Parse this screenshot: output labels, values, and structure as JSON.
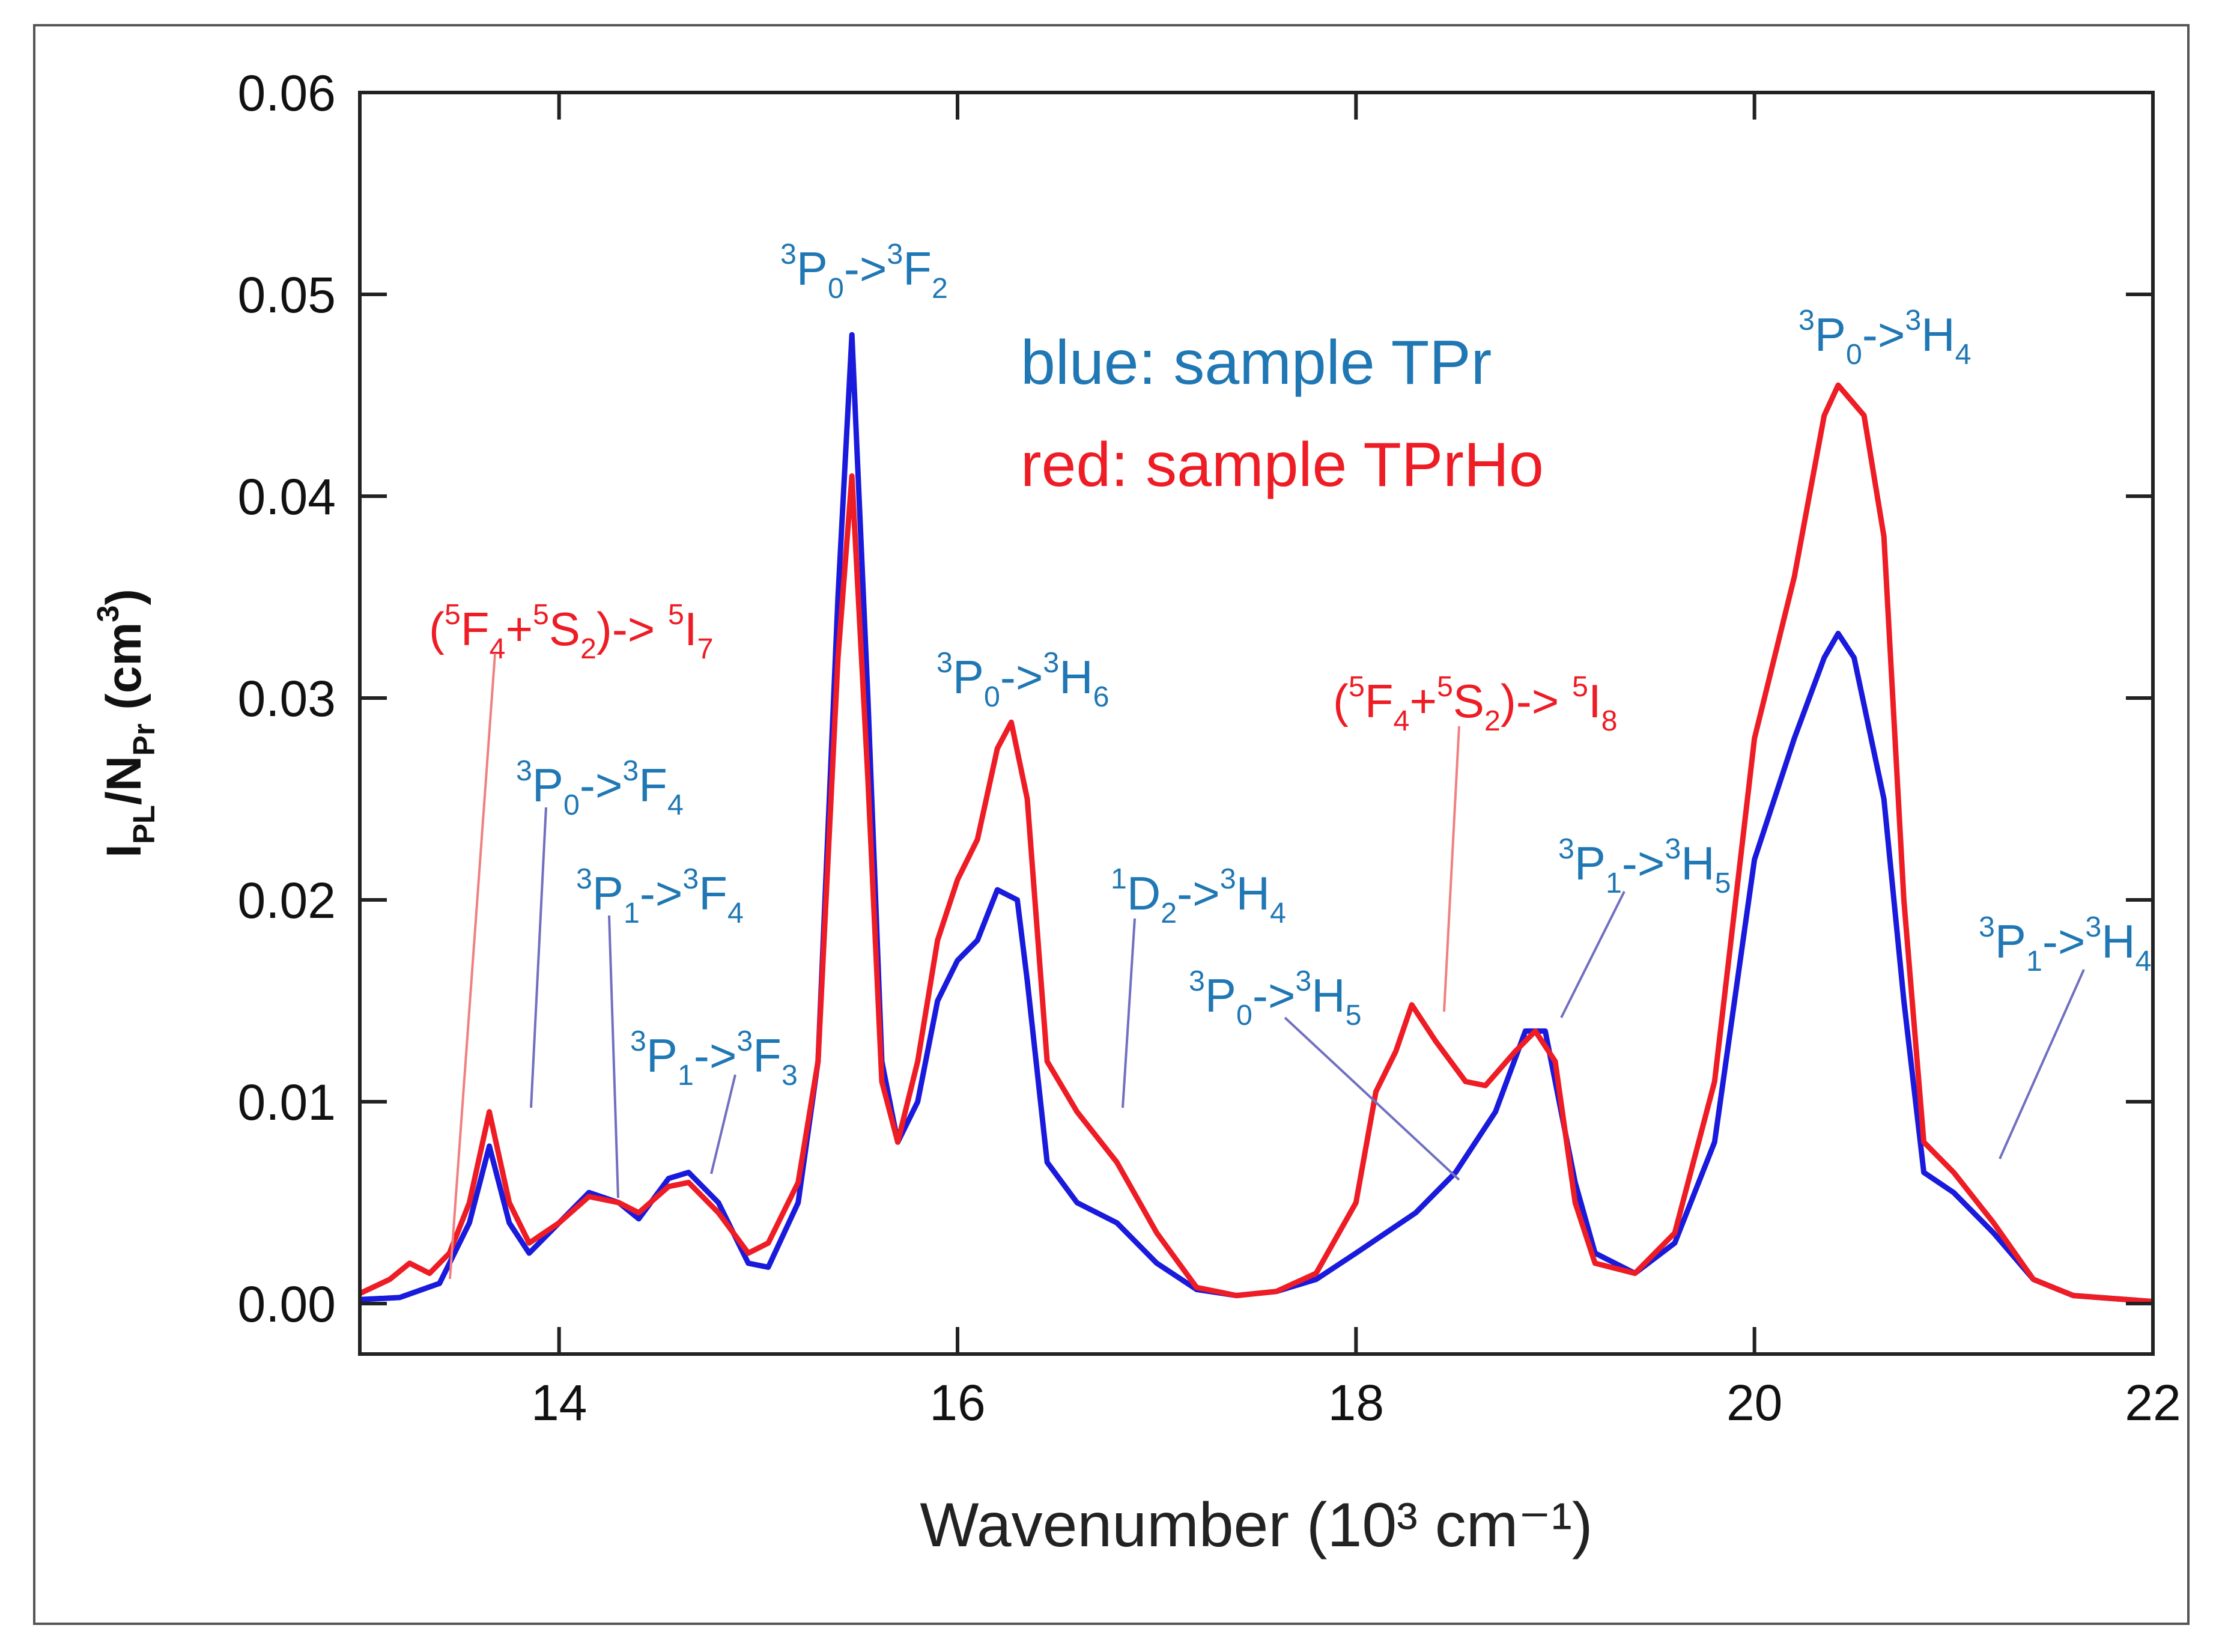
{
  "chart_data": {
    "type": "line",
    "title": "",
    "xlabel": "Wavenumber (10³ cm⁻¹)",
    "ylabel": {
      "main": "I",
      "sub1": "PL",
      "mid": "/N",
      "sub2": "Pr",
      "unit": " (cm",
      "unit_sup": "3",
      "unit_end": ")"
    },
    "xlim": [
      13,
      22
    ],
    "ylim": [
      -0.0025,
      0.06
    ],
    "xticks": [
      14,
      16,
      18,
      20,
      22
    ],
    "xtick_labels": [
      "14",
      "16",
      "18",
      "20",
      "22"
    ],
    "yticks": [
      0.0,
      0.01,
      0.02,
      0.03,
      0.04,
      0.05,
      0.06
    ],
    "ytick_labels": [
      "0.00",
      "0.01",
      "0.02",
      "0.03",
      "0.04",
      "0.05",
      "0.06"
    ],
    "grid": false,
    "legend": [
      {
        "text": "blue: sample TPr",
        "color": "#1f77b4"
      },
      {
        "text": "red: sample TPrHo",
        "color": "#ee1c24"
      }
    ],
    "series": [
      {
        "name": "sample TPr",
        "color": "#1a1adc",
        "points": [
          [
            13.0,
            0.0002
          ],
          [
            13.2,
            0.0003
          ],
          [
            13.4,
            0.001
          ],
          [
            13.55,
            0.004
          ],
          [
            13.65,
            0.0078
          ],
          [
            13.75,
            0.004
          ],
          [
            13.85,
            0.0025
          ],
          [
            14.0,
            0.004
          ],
          [
            14.15,
            0.0055
          ],
          [
            14.3,
            0.005
          ],
          [
            14.4,
            0.0042
          ],
          [
            14.55,
            0.0062
          ],
          [
            14.65,
            0.0065
          ],
          [
            14.8,
            0.005
          ],
          [
            14.95,
            0.002
          ],
          [
            15.05,
            0.0018
          ],
          [
            15.2,
            0.005
          ],
          [
            15.3,
            0.012
          ],
          [
            15.4,
            0.035
          ],
          [
            15.47,
            0.048
          ],
          [
            15.55,
            0.03
          ],
          [
            15.62,
            0.012
          ],
          [
            15.7,
            0.008
          ],
          [
            15.8,
            0.01
          ],
          [
            15.9,
            0.015
          ],
          [
            16.0,
            0.017
          ],
          [
            16.1,
            0.018
          ],
          [
            16.2,
            0.0205
          ],
          [
            16.3,
            0.02
          ],
          [
            16.35,
            0.016
          ],
          [
            16.45,
            0.007
          ],
          [
            16.6,
            0.005
          ],
          [
            16.8,
            0.004
          ],
          [
            17.0,
            0.002
          ],
          [
            17.2,
            0.0007
          ],
          [
            17.4,
            0.0004
          ],
          [
            17.6,
            0.0006
          ],
          [
            17.8,
            0.0012
          ],
          [
            18.0,
            0.0025
          ],
          [
            18.3,
            0.0045
          ],
          [
            18.5,
            0.0065
          ],
          [
            18.7,
            0.0095
          ],
          [
            18.85,
            0.0135
          ],
          [
            18.95,
            0.0135
          ],
          [
            19.1,
            0.006
          ],
          [
            19.2,
            0.0025
          ],
          [
            19.4,
            0.0015
          ],
          [
            19.6,
            0.003
          ],
          [
            19.8,
            0.008
          ],
          [
            20.0,
            0.022
          ],
          [
            20.2,
            0.028
          ],
          [
            20.35,
            0.032
          ],
          [
            20.42,
            0.0332
          ],
          [
            20.5,
            0.032
          ],
          [
            20.65,
            0.025
          ],
          [
            20.75,
            0.015
          ],
          [
            20.85,
            0.0065
          ],
          [
            21.0,
            0.0055
          ],
          [
            21.2,
            0.0035
          ],
          [
            21.4,
            0.0012
          ],
          [
            21.6,
            0.0004
          ],
          [
            22.0,
            0.0001
          ]
        ]
      },
      {
        "name": "sample TPrHo",
        "color": "#ee1c24",
        "points": [
          [
            13.0,
            0.0005
          ],
          [
            13.15,
            0.0012
          ],
          [
            13.25,
            0.002
          ],
          [
            13.35,
            0.0015
          ],
          [
            13.45,
            0.0025
          ],
          [
            13.55,
            0.005
          ],
          [
            13.65,
            0.0095
          ],
          [
            13.75,
            0.005
          ],
          [
            13.85,
            0.003
          ],
          [
            14.0,
            0.004
          ],
          [
            14.15,
            0.0053
          ],
          [
            14.3,
            0.005
          ],
          [
            14.4,
            0.0045
          ],
          [
            14.55,
            0.0058
          ],
          [
            14.65,
            0.006
          ],
          [
            14.8,
            0.0045
          ],
          [
            14.95,
            0.0025
          ],
          [
            15.05,
            0.003
          ],
          [
            15.2,
            0.006
          ],
          [
            15.3,
            0.012
          ],
          [
            15.4,
            0.032
          ],
          [
            15.47,
            0.041
          ],
          [
            15.55,
            0.026
          ],
          [
            15.62,
            0.011
          ],
          [
            15.7,
            0.008
          ],
          [
            15.8,
            0.012
          ],
          [
            15.9,
            0.018
          ],
          [
            16.0,
            0.021
          ],
          [
            16.1,
            0.023
          ],
          [
            16.2,
            0.0275
          ],
          [
            16.27,
            0.0288
          ],
          [
            16.35,
            0.025
          ],
          [
            16.45,
            0.012
          ],
          [
            16.6,
            0.0095
          ],
          [
            16.8,
            0.007
          ],
          [
            17.0,
            0.0035
          ],
          [
            17.2,
            0.0008
          ],
          [
            17.4,
            0.0004
          ],
          [
            17.6,
            0.0006
          ],
          [
            17.8,
            0.0015
          ],
          [
            18.0,
            0.005
          ],
          [
            18.1,
            0.0105
          ],
          [
            18.2,
            0.0125
          ],
          [
            18.28,
            0.0148
          ],
          [
            18.4,
            0.013
          ],
          [
            18.55,
            0.011
          ],
          [
            18.65,
            0.0108
          ],
          [
            18.8,
            0.0125
          ],
          [
            18.9,
            0.0135
          ],
          [
            19.0,
            0.012
          ],
          [
            19.1,
            0.005
          ],
          [
            19.2,
            0.002
          ],
          [
            19.4,
            0.0015
          ],
          [
            19.6,
            0.0035
          ],
          [
            19.8,
            0.011
          ],
          [
            20.0,
            0.028
          ],
          [
            20.2,
            0.036
          ],
          [
            20.35,
            0.044
          ],
          [
            20.42,
            0.0455
          ],
          [
            20.55,
            0.044
          ],
          [
            20.65,
            0.038
          ],
          [
            20.75,
            0.02
          ],
          [
            20.85,
            0.008
          ],
          [
            21.0,
            0.0065
          ],
          [
            21.2,
            0.004
          ],
          [
            21.4,
            0.0012
          ],
          [
            21.6,
            0.0004
          ],
          [
            22.0,
            0.0001
          ]
        ]
      }
    ],
    "annotations": [
      {
        "id": "a-p0-f2",
        "color": "#1f77b4",
        "parts": [
          [
            "sup",
            "3"
          ],
          [
            "t",
            "P"
          ],
          [
            "sub",
            "0"
          ],
          [
            "t",
            "->"
          ],
          [
            "sup",
            "3"
          ],
          [
            "t",
            "F"
          ],
          [
            "sub",
            "2"
          ]
        ]
      },
      {
        "id": "a-p0-h4",
        "color": "#1f77b4",
        "parts": [
          [
            "sup",
            "3"
          ],
          [
            "t",
            "P"
          ],
          [
            "sub",
            "0"
          ],
          [
            "t",
            "->"
          ],
          [
            "sup",
            "3"
          ],
          [
            "t",
            "H"
          ],
          [
            "sub",
            "4"
          ]
        ]
      },
      {
        "id": "a-f4s2-i7",
        "color": "#ee1c24",
        "parts": [
          [
            "t",
            "("
          ],
          [
            "sup",
            "5"
          ],
          [
            "t",
            "F"
          ],
          [
            "sub",
            "4"
          ],
          [
            "t",
            "+"
          ],
          [
            "sup",
            "5"
          ],
          [
            "t",
            "S"
          ],
          [
            "sub",
            "2"
          ],
          [
            "t",
            ")-> "
          ],
          [
            "sup",
            "5"
          ],
          [
            "t",
            "I"
          ],
          [
            "sub",
            "7"
          ]
        ]
      },
      {
        "id": "a-p0-h6",
        "color": "#1f77b4",
        "parts": [
          [
            "sup",
            "3"
          ],
          [
            "t",
            "P"
          ],
          [
            "sub",
            "0"
          ],
          [
            "t",
            "->"
          ],
          [
            "sup",
            "3"
          ],
          [
            "t",
            "H"
          ],
          [
            "sub",
            "6"
          ]
        ]
      },
      {
        "id": "a-f4s2-i8",
        "color": "#ee1c24",
        "parts": [
          [
            "t",
            "("
          ],
          [
            "sup",
            "5"
          ],
          [
            "t",
            "F"
          ],
          [
            "sub",
            "4"
          ],
          [
            "t",
            "+"
          ],
          [
            "sup",
            "5"
          ],
          [
            "t",
            "S"
          ],
          [
            "sub",
            "2"
          ],
          [
            "t",
            ")-> "
          ],
          [
            "sup",
            "5"
          ],
          [
            "t",
            "I"
          ],
          [
            "sub",
            "8"
          ]
        ]
      },
      {
        "id": "a-p0-f4",
        "color": "#1f77b4",
        "parts": [
          [
            "sup",
            "3"
          ],
          [
            "t",
            "P"
          ],
          [
            "sub",
            "0"
          ],
          [
            "t",
            "->"
          ],
          [
            "sup",
            "3"
          ],
          [
            "t",
            "F"
          ],
          [
            "sub",
            "4"
          ]
        ]
      },
      {
        "id": "a-p1-f4",
        "color": "#1f77b4",
        "parts": [
          [
            "sup",
            "3"
          ],
          [
            "t",
            "P"
          ],
          [
            "sub",
            "1"
          ],
          [
            "t",
            "->"
          ],
          [
            "sup",
            "3"
          ],
          [
            "t",
            "F"
          ],
          [
            "sub",
            "4"
          ]
        ]
      },
      {
        "id": "a-d2-h4",
        "color": "#1f77b4",
        "parts": [
          [
            "sup",
            "1"
          ],
          [
            "t",
            "D"
          ],
          [
            "sub",
            "2"
          ],
          [
            "t",
            "->"
          ],
          [
            "sup",
            "3"
          ],
          [
            "t",
            "H"
          ],
          [
            "sub",
            "4"
          ]
        ]
      },
      {
        "id": "a-p1-h5",
        "color": "#1f77b4",
        "parts": [
          [
            "sup",
            "3"
          ],
          [
            "t",
            "P"
          ],
          [
            "sub",
            "1"
          ],
          [
            "t",
            "->"
          ],
          [
            "sup",
            "3"
          ],
          [
            "t",
            "H"
          ],
          [
            "sub",
            "5"
          ]
        ]
      },
      {
        "id": "a-p1-h4",
        "color": "#1f77b4",
        "parts": [
          [
            "sup",
            "3"
          ],
          [
            "t",
            "P"
          ],
          [
            "sub",
            "1"
          ],
          [
            "t",
            "->"
          ],
          [
            "sup",
            "3"
          ],
          [
            "t",
            "H"
          ],
          [
            "sub",
            "4"
          ]
        ]
      },
      {
        "id": "a-p0-h5",
        "color": "#1f77b4",
        "parts": [
          [
            "sup",
            "3"
          ],
          [
            "t",
            "P"
          ],
          [
            "sub",
            "0"
          ],
          [
            "t",
            "->"
          ],
          [
            "sup",
            "3"
          ],
          [
            "t",
            "H"
          ],
          [
            "sub",
            "5"
          ]
        ]
      },
      {
        "id": "a-p1-f3",
        "color": "#1f77b4",
        "parts": [
          [
            "sup",
            "3"
          ],
          [
            "t",
            "P"
          ],
          [
            "sub",
            "1"
          ],
          [
            "t",
            "->"
          ],
          [
            "sup",
            "3"
          ],
          [
            "t",
            "F"
          ],
          [
            "sub",
            "3"
          ]
        ]
      }
    ]
  }
}
